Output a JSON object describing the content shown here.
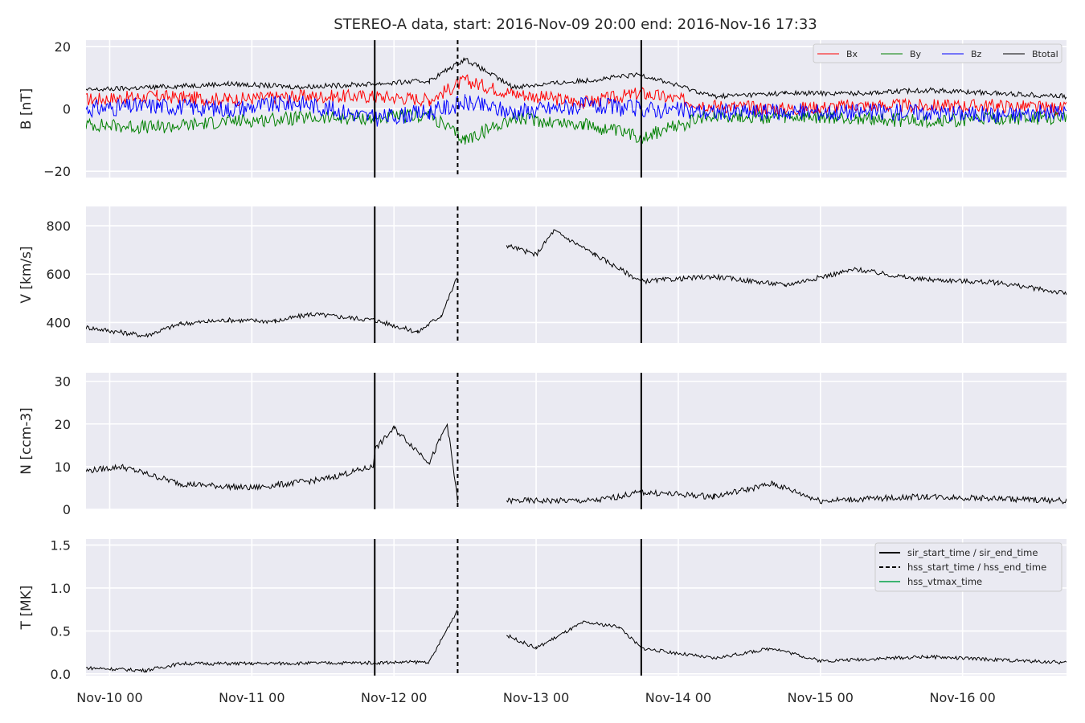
{
  "chart_data": {
    "type": "line",
    "title": "STEREO-A data, start: 2016-Nov-09 20:00  end: 2016-Nov-16 17:33",
    "x_axis": {
      "unit": "days",
      "range": [
        "2016-11-09 20:00",
        "2016-11-16 17:33"
      ],
      "tick_labels": [
        "Nov-10 00",
        "Nov-11 00",
        "Nov-12 00",
        "Nov-13 00",
        "Nov-14 00",
        "Nov-15 00",
        "Nov-16 00"
      ],
      "tick_dates": [
        "2016-11-10 00:00",
        "2016-11-11 00:00",
        "2016-11-12 00:00",
        "2016-11-13 00:00",
        "2016-11-14 00:00",
        "2016-11-15 00:00",
        "2016-11-16 00:00"
      ]
    },
    "grid": true,
    "events": {
      "sir_start_time": "2016-11-11 20:45",
      "hss_start_time": "2016-11-12 10:45",
      "sir_end_time": "2016-11-13 17:45"
    },
    "panels": [
      {
        "ylabel": "B [nT]",
        "ylim": [
          -22,
          22
        ],
        "yticks": [
          -20,
          0,
          20
        ],
        "ytick_labels": [
          "−20",
          "0",
          "20"
        ],
        "legend": {
          "placement": "top-right",
          "columns": 4
        },
        "series": [
          {
            "name": "Bx",
            "color": "#ff0000",
            "t": [
              "2016-11-09 20:00",
              "2016-11-10 08:00",
              "2016-11-10 20:00",
              "2016-11-11 08:00",
              "2016-11-11 20:45",
              "2016-11-12 06:00",
              "2016-11-12 12:00",
              "2016-11-12 20:00",
              "2016-11-13 08:00",
              "2016-11-13 17:45",
              "2016-11-14 06:00",
              "2016-11-14 18:00",
              "2016-11-15 06:00",
              "2016-11-15 18:00",
              "2016-11-16 06:00",
              "2016-11-16 17:33"
            ],
            "values": [
              3,
              4,
              3,
              4,
              4,
              3,
              9,
              5,
              2,
              5,
              1,
              0,
              1,
              1,
              1,
              0
            ]
          },
          {
            "name": "By",
            "color": "#008000",
            "t": [
              "2016-11-09 20:00",
              "2016-11-10 08:00",
              "2016-11-10 20:00",
              "2016-11-11 08:00",
              "2016-11-11 20:45",
              "2016-11-12 06:00",
              "2016-11-12 12:00",
              "2016-11-12 20:00",
              "2016-11-13 08:00",
              "2016-11-13 17:45",
              "2016-11-14 06:00",
              "2016-11-14 18:00",
              "2016-11-15 06:00",
              "2016-11-15 18:00",
              "2016-11-16 06:00",
              "2016-11-16 17:33"
            ],
            "values": [
              -5,
              -6,
              -4,
              -3,
              -3,
              -2,
              -10,
              -3,
              -5,
              -9,
              -2,
              -3,
              -3,
              -4,
              -3,
              -3
            ]
          },
          {
            "name": "Bz",
            "color": "#0000ff",
            "t": [
              "2016-11-09 20:00",
              "2016-11-10 08:00",
              "2016-11-10 20:00",
              "2016-11-11 08:00",
              "2016-11-11 20:45",
              "2016-11-12 06:00",
              "2016-11-12 12:00",
              "2016-11-12 20:00",
              "2016-11-13 08:00",
              "2016-11-13 17:45",
              "2016-11-14 06:00",
              "2016-11-14 18:00",
              "2016-11-15 06:00",
              "2016-11-15 18:00",
              "2016-11-16 06:00",
              "2016-11-16 17:33"
            ],
            "values": [
              0,
              1,
              0,
              2,
              -3,
              -1,
              2,
              -1,
              1,
              0,
              -1,
              -1,
              -1,
              -1,
              -2,
              -1
            ]
          },
          {
            "name": "Btotal",
            "color": "#000000",
            "t": [
              "2016-11-09 20:00",
              "2016-11-10 08:00",
              "2016-11-10 20:00",
              "2016-11-11 08:00",
              "2016-11-11 20:45",
              "2016-11-12 06:00",
              "2016-11-12 12:00",
              "2016-11-12 20:00",
              "2016-11-13 08:00",
              "2016-11-13 17:45",
              "2016-11-14 06:00",
              "2016-11-14 18:00",
              "2016-11-15 06:00",
              "2016-11-15 18:00",
              "2016-11-16 06:00",
              "2016-11-16 17:33"
            ],
            "values": [
              6,
              7,
              8,
              7,
              8,
              9,
              16,
              7,
              9,
              11,
              4,
              5,
              5,
              6,
              5,
              4
            ]
          }
        ]
      },
      {
        "ylabel": "V [km/s]",
        "ylim": [
          315,
          880
        ],
        "yticks": [
          400,
          600,
          800
        ],
        "ytick_labels": [
          "400",
          "600",
          "800"
        ],
        "series": [
          {
            "name": "V",
            "color": "#000000",
            "t": [
              "2016-11-09 20:00",
              "2016-11-10 06:00",
              "2016-11-10 12:00",
              "2016-11-10 20:00",
              "2016-11-11 04:00",
              "2016-11-11 10:00",
              "2016-11-11 20:45",
              "2016-11-12 04:00",
              "2016-11-12 08:00",
              "2016-11-12 10:45",
              null,
              "2016-11-12 19:00",
              "2016-11-13 00:00",
              "2016-11-13 03:00",
              "2016-11-13 10:00",
              "2016-11-13 17:45",
              "2016-11-14 06:00",
              "2016-11-14 18:00",
              "2016-11-15 06:00",
              "2016-11-15 16:00",
              "2016-11-16 06:00",
              "2016-11-16 17:33"
            ],
            "values": [
              380,
              345,
              395,
              410,
              405,
              435,
              410,
              360,
              430,
              590,
              null,
              720,
              680,
              780,
              680,
              570,
              590,
              555,
              620,
              580,
              565,
              520
            ]
          }
        ]
      },
      {
        "ylabel": "N [ccm-3]",
        "ylim": [
          0,
          32
        ],
        "yticks": [
          0,
          10,
          20,
          30
        ],
        "ytick_labels": [
          "0",
          "10",
          "20",
          "30"
        ],
        "series": [
          {
            "name": "N",
            "color": "#000000",
            "t": [
              "2016-11-09 20:00",
              "2016-11-10 02:00",
              "2016-11-10 12:00",
              "2016-11-11 00:00",
              "2016-11-11 12:00",
              "2016-11-11 20:30",
              "2016-11-11 20:45",
              "2016-11-12 00:00",
              "2016-11-12 06:00",
              "2016-11-12 09:00",
              "2016-11-12 10:45",
              null,
              "2016-11-12 19:00",
              "2016-11-13 10:00",
              "2016-11-13 17:45",
              "2016-11-14 06:00",
              "2016-11-14 16:00",
              "2016-11-15 00:00",
              "2016-11-15 18:00",
              "2016-11-16 17:33"
            ],
            "values": [
              9,
              10,
              6,
              5,
              7,
              10,
              14,
              19,
              11,
              20,
              2,
              null,
              2,
              2,
              4,
              3,
              6,
              2,
              3,
              2
            ]
          }
        ]
      },
      {
        "ylabel": "T [MK]",
        "ylim": [
          -0.02,
          1.57
        ],
        "yticks": [
          0.0,
          0.5,
          1.0,
          1.5
        ],
        "ytick_labels": [
          "0.0",
          "0.5",
          "1.0",
          "1.5"
        ],
        "legend": {
          "placement": "top-right",
          "entries": [
            {
              "label": "sir_start_time / sir_end_time",
              "style": "solid",
              "color": "#000000"
            },
            {
              "label": "hss_start_time / hss_end_time",
              "style": "dashed",
              "color": "#000000"
            },
            {
              "label": "hss_vtmax_time",
              "style": "solid",
              "color": "#3cb371"
            }
          ]
        },
        "series": [
          {
            "name": "T",
            "color": "#000000",
            "t": [
              "2016-11-09 20:00",
              "2016-11-10 06:00",
              "2016-11-10 12:00",
              "2016-11-11 00:00",
              "2016-11-11 20:45",
              "2016-11-12 06:00",
              "2016-11-12 10:45",
              null,
              "2016-11-12 19:00",
              "2016-11-13 00:00",
              "2016-11-13 08:00",
              "2016-11-13 14:00",
              "2016-11-13 17:45",
              "2016-11-14 06:00",
              "2016-11-14 16:00",
              "2016-11-15 00:00",
              "2016-11-15 18:00",
              "2016-11-16 17:33"
            ],
            "values": [
              0.07,
              0.04,
              0.12,
              0.12,
              0.13,
              0.14,
              0.75,
              null,
              0.45,
              0.3,
              0.6,
              0.55,
              0.3,
              0.18,
              0.3,
              0.15,
              0.2,
              0.13
            ]
          }
        ]
      }
    ]
  }
}
